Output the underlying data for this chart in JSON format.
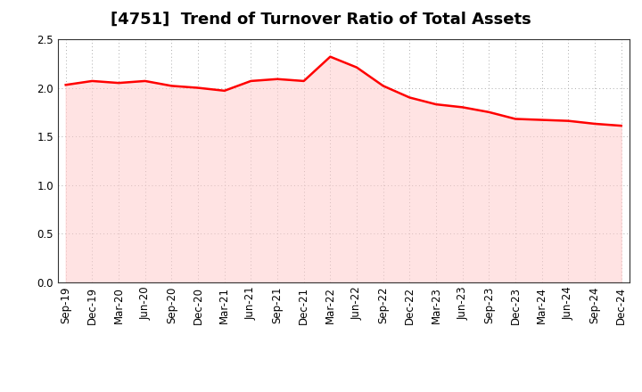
{
  "title": "[4751]  Trend of Turnover Ratio of Total Assets",
  "x_labels": [
    "Sep-19",
    "Dec-19",
    "Mar-20",
    "Jun-20",
    "Sep-20",
    "Dec-20",
    "Mar-21",
    "Jun-21",
    "Sep-21",
    "Dec-21",
    "Mar-22",
    "Jun-22",
    "Sep-22",
    "Dec-22",
    "Mar-23",
    "Jun-23",
    "Sep-23",
    "Dec-23",
    "Mar-24",
    "Jun-24",
    "Sep-24",
    "Dec-24"
  ],
  "y_values": [
    2.03,
    2.07,
    2.05,
    2.07,
    2.02,
    2.0,
    1.97,
    2.07,
    2.09,
    2.07,
    2.32,
    2.21,
    2.02,
    1.9,
    1.83,
    1.8,
    1.75,
    1.68,
    1.67,
    1.66,
    1.63,
    1.61
  ],
  "line_color": "#FF0000",
  "line_width": 1.8,
  "ylim": [
    0.0,
    2.5
  ],
  "yticks": [
    0.0,
    0.5,
    1.0,
    1.5,
    2.0,
    2.5
  ],
  "background_color": "#ffffff",
  "plot_bg_color": "#ffffff",
  "grid_color": "#aaaaaa",
  "title_fontsize": 13,
  "tick_fontsize": 8.5,
  "fill_color": "#ffcccc",
  "fill_alpha": 0.55
}
